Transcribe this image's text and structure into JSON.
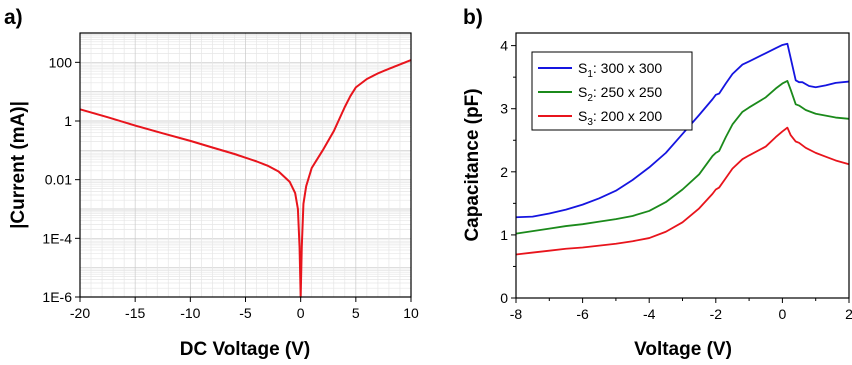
{
  "chart_data": [
    {
      "panel_label": "a)",
      "type": "line",
      "xlabel": "DC Voltage (V)",
      "ylabel": "|Current (mA)|",
      "xlim": [
        -20,
        10
      ],
      "ylim": [
        1e-06,
        1000
      ],
      "yscale": "log",
      "grid": true,
      "x_ticks": [
        "-20",
        "-15",
        "-10",
        "-5",
        "0",
        "5",
        "10"
      ],
      "y_ticks": [
        {
          "v": 1e-06,
          "label": "1E-6"
        },
        {
          "v": 0.0001,
          "label": "1E-4"
        },
        {
          "v": 0.01,
          "label": "0.01"
        },
        {
          "v": 1,
          "label": "1"
        },
        {
          "v": 100,
          "label": "100"
        }
      ],
      "series": [
        {
          "color": "#e8141c",
          "points": [
            [
              -20,
              2.5
            ],
            [
              -17.5,
              1.35
            ],
            [
              -15,
              0.7
            ],
            [
              -12.5,
              0.38
            ],
            [
              -10,
              0.21
            ],
            [
              -8,
              0.125
            ],
            [
              -6,
              0.075
            ],
            [
              -4,
              0.042
            ],
            [
              -3,
              0.03
            ],
            [
              -2,
              0.019
            ],
            [
              -1,
              0.0085
            ],
            [
              -0.5,
              0.0035
            ],
            [
              -0.25,
              0.001
            ],
            [
              -0.1,
              5e-05
            ],
            [
              0,
              1e-06
            ],
            [
              0.1,
              5e-05
            ],
            [
              0.25,
              0.0015
            ],
            [
              0.5,
              0.006
            ],
            [
              1,
              0.025
            ],
            [
              2,
              0.1
            ],
            [
              3,
              0.45
            ],
            [
              4,
              3
            ],
            [
              4.5,
              7
            ],
            [
              5,
              14
            ],
            [
              6,
              27
            ],
            [
              7,
              42
            ],
            [
              8,
              60
            ],
            [
              9,
              85
            ],
            [
              10,
              120
            ]
          ]
        }
      ]
    },
    {
      "panel_label": "b)",
      "type": "line",
      "xlabel": "Voltage (V)",
      "ylabel": "Capacitance (pF)",
      "xlim": [
        -8,
        2
      ],
      "ylim": [
        0,
        4.2
      ],
      "x_ticks": [
        "-8",
        "-6",
        "-4",
        "-2",
        "0",
        "2"
      ],
      "y_ticks": [
        "0",
        "1",
        "2",
        "3",
        "4"
      ],
      "grid": false,
      "legend_position": "top-left",
      "series": [
        {
          "name": "S1: 300 x 300",
          "legend_main": "S",
          "legend_sub": "1",
          "legend_rest": ": 300 x 300",
          "color": "#1515e0",
          "points": [
            [
              -8,
              1.28
            ],
            [
              -7.5,
              1.29
            ],
            [
              -7,
              1.34
            ],
            [
              -6.5,
              1.4
            ],
            [
              -6,
              1.48
            ],
            [
              -5.5,
              1.58
            ],
            [
              -5,
              1.7
            ],
            [
              -4.5,
              1.87
            ],
            [
              -4,
              2.07
            ],
            [
              -3.5,
              2.3
            ],
            [
              -3,
              2.6
            ],
            [
              -2.5,
              2.9
            ],
            [
              -2.1,
              3.15
            ],
            [
              -2.0,
              3.22
            ],
            [
              -1.9,
              3.24
            ],
            [
              -1.7,
              3.4
            ],
            [
              -1.5,
              3.55
            ],
            [
              -1.2,
              3.7
            ],
            [
              -1.0,
              3.75
            ],
            [
              -0.5,
              3.88
            ],
            [
              -0.2,
              3.96
            ],
            [
              0.0,
              4.01
            ],
            [
              0.15,
              4.03
            ],
            [
              0.25,
              3.8
            ],
            [
              0.4,
              3.45
            ],
            [
              0.5,
              3.42
            ],
            [
              0.6,
              3.42
            ],
            [
              0.8,
              3.36
            ],
            [
              1.0,
              3.34
            ],
            [
              1.3,
              3.37
            ],
            [
              1.6,
              3.41
            ],
            [
              2.0,
              3.43
            ]
          ]
        },
        {
          "name": "S2: 250 x 250",
          "legend_main": "S",
          "legend_sub": "2",
          "legend_rest": ": 250 x 250",
          "color": "#1b8a1b",
          "points": [
            [
              -8,
              1.02
            ],
            [
              -7.5,
              1.06
            ],
            [
              -7,
              1.1
            ],
            [
              -6.5,
              1.14
            ],
            [
              -6,
              1.17
            ],
            [
              -5.5,
              1.21
            ],
            [
              -5,
              1.25
            ],
            [
              -4.5,
              1.3
            ],
            [
              -4,
              1.38
            ],
            [
              -3.5,
              1.52
            ],
            [
              -3,
              1.72
            ],
            [
              -2.5,
              1.96
            ],
            [
              -2.1,
              2.25
            ],
            [
              -2.0,
              2.3
            ],
            [
              -1.9,
              2.33
            ],
            [
              -1.7,
              2.55
            ],
            [
              -1.5,
              2.75
            ],
            [
              -1.2,
              2.95
            ],
            [
              -1.0,
              3.02
            ],
            [
              -0.5,
              3.18
            ],
            [
              -0.2,
              3.32
            ],
            [
              0.0,
              3.4
            ],
            [
              0.15,
              3.44
            ],
            [
              0.25,
              3.3
            ],
            [
              0.4,
              3.07
            ],
            [
              0.5,
              3.05
            ],
            [
              0.7,
              2.98
            ],
            [
              1.0,
              2.92
            ],
            [
              1.3,
              2.89
            ],
            [
              1.6,
              2.86
            ],
            [
              2.0,
              2.84
            ]
          ]
        },
        {
          "name": "S3: 200 x 200",
          "legend_main": "S",
          "legend_sub": "3",
          "legend_rest": ": 200 x 200",
          "color": "#e8141c",
          "points": [
            [
              -8,
              0.69
            ],
            [
              -7.5,
              0.72
            ],
            [
              -7,
              0.75
            ],
            [
              -6.5,
              0.78
            ],
            [
              -6,
              0.8
            ],
            [
              -5.5,
              0.83
            ],
            [
              -5,
              0.86
            ],
            [
              -4.5,
              0.9
            ],
            [
              -4,
              0.95
            ],
            [
              -3.5,
              1.05
            ],
            [
              -3,
              1.2
            ],
            [
              -2.5,
              1.42
            ],
            [
              -2.1,
              1.65
            ],
            [
              -2.0,
              1.72
            ],
            [
              -1.9,
              1.75
            ],
            [
              -1.7,
              1.9
            ],
            [
              -1.5,
              2.05
            ],
            [
              -1.2,
              2.2
            ],
            [
              -1.0,
              2.26
            ],
            [
              -0.5,
              2.4
            ],
            [
              -0.2,
              2.55
            ],
            [
              0.0,
              2.64
            ],
            [
              0.15,
              2.7
            ],
            [
              0.25,
              2.58
            ],
            [
              0.4,
              2.48
            ],
            [
              0.5,
              2.46
            ],
            [
              0.7,
              2.38
            ],
            [
              1.0,
              2.3
            ],
            [
              1.3,
              2.24
            ],
            [
              1.6,
              2.18
            ],
            [
              2.0,
              2.12
            ]
          ]
        }
      ]
    }
  ]
}
